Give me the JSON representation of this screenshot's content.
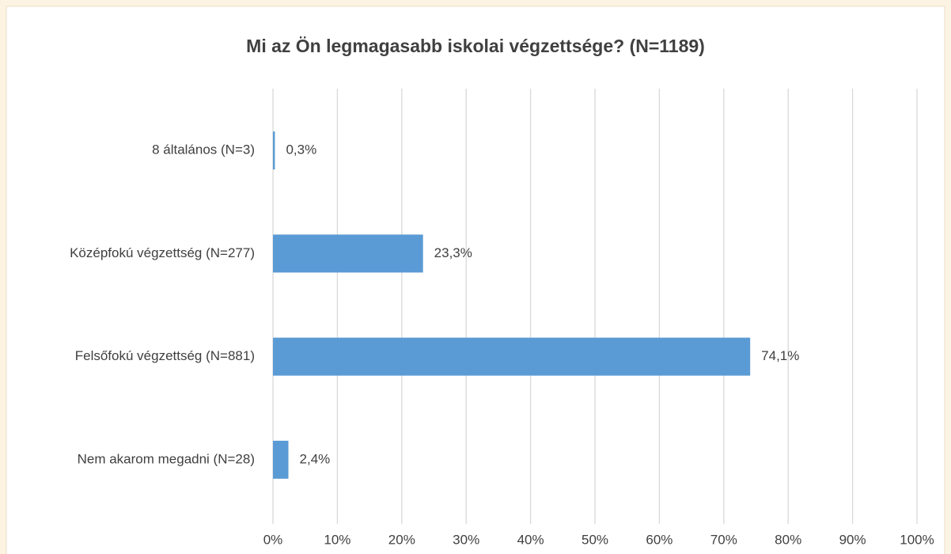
{
  "chart_data": {
    "type": "bar",
    "orientation": "horizontal",
    "title": "Mi az Ön legmagasabb iskolai végzettsége? (N=1189)",
    "categories": [
      "8 általános (N=3)",
      "Középfokú végzettség (N=277)",
      "Felsőfokú végzettség (N=881)",
      "Nem akarom megadni (N=28)"
    ],
    "values": [
      0.3,
      23.3,
      74.1,
      2.4
    ],
    "value_labels": [
      "0,3%",
      "23,3%",
      "74,1%",
      "2,4%"
    ],
    "color": "#5b9bd5",
    "xlim": [
      0,
      100
    ],
    "xticks": [
      {
        "value": 0,
        "label": "0%"
      },
      {
        "value": 10,
        "label": "10%"
      },
      {
        "value": 20,
        "label": "20%"
      },
      {
        "value": 30,
        "label": "30%"
      },
      {
        "value": 40,
        "label": "40%"
      },
      {
        "value": 50,
        "label": "50%"
      },
      {
        "value": 60,
        "label": "60%"
      },
      {
        "value": 70,
        "label": "70%"
      },
      {
        "value": 80,
        "label": "80%"
      },
      {
        "value": 90,
        "label": "90%"
      },
      {
        "value": 100,
        "label": "100%"
      }
    ],
    "grid": true
  }
}
